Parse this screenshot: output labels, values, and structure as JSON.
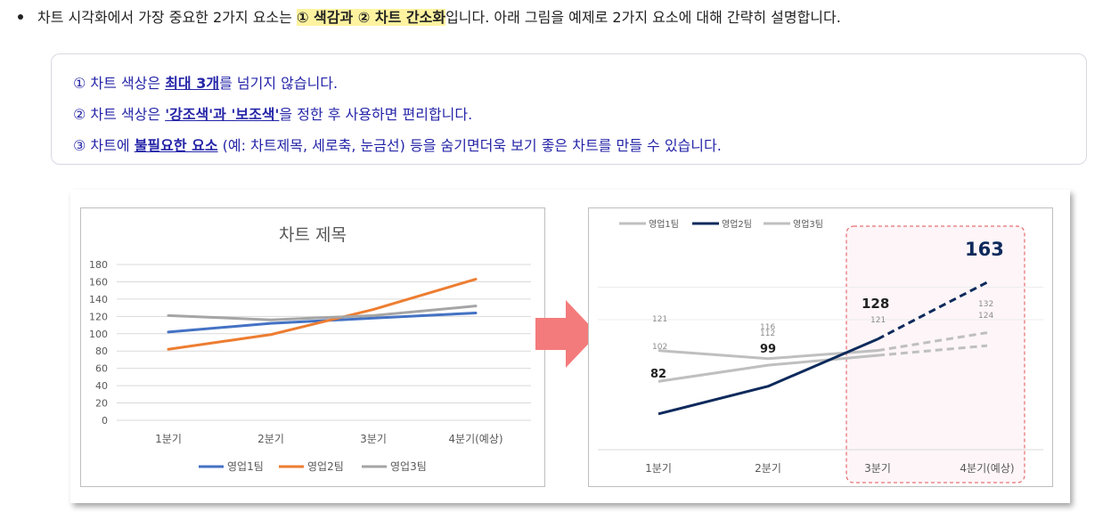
{
  "intro": {
    "text_before": "차트 시각화에서 가장 중요한 2가지 요소는 ",
    "highlight": "① 색감과 ② 차트 간소화",
    "text_after": "입니다. 아래 그림을 예제로 2가지 요소에 대해 간략히 설명합니다."
  },
  "notes": [
    {
      "before": "① 차트 색상은 ",
      "emph": "최대 3개",
      "after": "를 넘기지 않습니다."
    },
    {
      "before": "② 차트 색상은 ",
      "emph": "'강조색'과 '보조색'",
      "after": "을 정한 후 사용하면 편리합니다."
    },
    {
      "before": "③ 차트에 ",
      "emph": "불필요한 요소",
      "after": " (예: 차트제목, 세로축, 눈금선) 등을 숨기면더욱 보기 좋은 차트를 만들 수 있습니다."
    }
  ],
  "colors": {
    "accent_arrow": "#f47b7b",
    "note_text": "#2525a8",
    "highlight": "#fff3a0",
    "series_original": [
      "#4472c4",
      "#ed7d31",
      "#a5a5a5"
    ],
    "series_improved": [
      "#bfbfbf",
      "#0e2a5c",
      "#bfbfbf"
    ]
  },
  "chart_data": [
    {
      "type": "line",
      "title": "차트 제목",
      "categories": [
        "1분기",
        "2분기",
        "3분기",
        "4분기(예상)"
      ],
      "series": [
        {
          "name": "영업1팀",
          "values": [
            102,
            112,
            118,
            124
          ]
        },
        {
          "name": "영업2팀",
          "values": [
            82,
            99,
            128,
            163
          ]
        },
        {
          "name": "영업3팀",
          "values": [
            121,
            116,
            121,
            132
          ]
        }
      ],
      "ylim": [
        0,
        180
      ],
      "yticks": [
        0,
        20,
        40,
        60,
        80,
        100,
        120,
        140,
        160,
        180
      ],
      "grid": true,
      "legend": "bottom"
    },
    {
      "type": "line",
      "categories": [
        "1분기",
        "2분기",
        "3분기",
        "4분기(예상)"
      ],
      "series": [
        {
          "name": "영업1팀",
          "values": [
            102,
            112,
            118,
            124
          ]
        },
        {
          "name": "영업2팀",
          "values": [
            82,
            99,
            128,
            163
          ]
        },
        {
          "name": "영업3팀",
          "values": [
            121,
            116,
            121,
            132
          ]
        }
      ],
      "data_labels": [
        {
          "series": "영업1팀",
          "labels": [
            "102",
            "",
            "",
            "124"
          ]
        },
        {
          "series": "영업2팀",
          "labels": [
            "82",
            "99",
            "128",
            "163"
          ]
        },
        {
          "series": "영업3팀",
          "labels": [
            "121",
            "116",
            "121",
            "132"
          ]
        }
      ],
      "extra_labels": [
        "112"
      ],
      "ylim": [
        60,
        180
      ],
      "grid": true,
      "legend": "top-left",
      "forecast_category": "4분기(예상)",
      "highlight_region": [
        "3분기",
        "4분기(예상)"
      ]
    }
  ]
}
